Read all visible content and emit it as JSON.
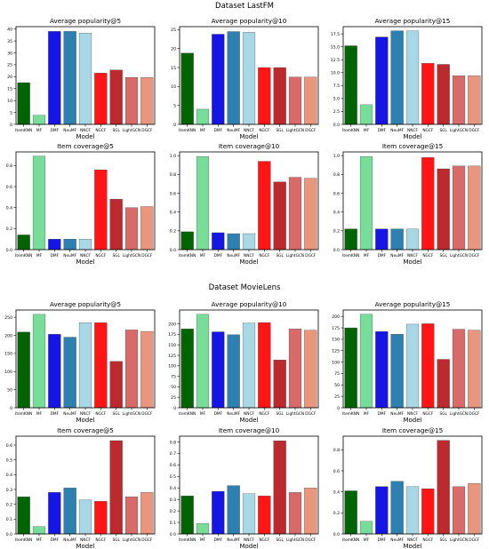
{
  "sections": [
    {
      "title": "Dataset LastFM"
    },
    {
      "title": "Dataset MovieLens"
    }
  ],
  "models": [
    "ItemKNN",
    "MF",
    "DMF",
    "NeuMF",
    "NNCF",
    "NGCF",
    "SGL",
    "LightGCN",
    "DGCF"
  ],
  "bar_colors": [
    "#006400",
    "#77dd99",
    "#1515e6",
    "#2e80b0",
    "#a8d8e6",
    "#ff1515",
    "#bd2a2e",
    "#d96a6a",
    "#e8967e"
  ],
  "xlabel": "Model",
  "chart_data": [
    {
      "type": "bar",
      "section": "Dataset LastFM",
      "title": "Average popularity@5",
      "xlabel": "Model",
      "categories": [
        "ItemKNN",
        "MF",
        "DMF",
        "NeuMF",
        "NNCF",
        "NGCF",
        "SGL",
        "LightGCN",
        "DGCF"
      ],
      "values": [
        17.5,
        3.8,
        39.0,
        39.0,
        38.3,
        21.5,
        22.8,
        19.7,
        19.7
      ],
      "ylim": [
        0,
        41
      ],
      "yticks": [
        0,
        5,
        10,
        15,
        20,
        25,
        30,
        35,
        40
      ],
      "ytick_labels": [
        "0",
        "5",
        "10",
        "15",
        "20",
        "25",
        "30",
        "35",
        "40"
      ]
    },
    {
      "type": "bar",
      "section": "Dataset LastFM",
      "title": "Average popularity@10",
      "xlabel": "Model",
      "categories": [
        "ItemKNN",
        "MF",
        "DMF",
        "NeuMF",
        "NNCF",
        "NGCF",
        "SGL",
        "LightGCN",
        "DGCF"
      ],
      "values": [
        18.8,
        4.0,
        23.8,
        24.5,
        24.3,
        15.0,
        15.0,
        12.5,
        12.5
      ],
      "ylim": [
        0,
        25.8
      ],
      "yticks": [
        0,
        5,
        10,
        15,
        20,
        25
      ],
      "ytick_labels": [
        "0",
        "5",
        "10",
        "15",
        "20",
        "25"
      ]
    },
    {
      "type": "bar",
      "section": "Dataset LastFM",
      "title": "Average popularity@15",
      "xlabel": "Model",
      "categories": [
        "ItemKNN",
        "MF",
        "DMF",
        "NeuMF",
        "NNCF",
        "NGCF",
        "SGL",
        "LightGCN",
        "DGCF"
      ],
      "values": [
        15.2,
        3.8,
        16.9,
        18.1,
        18.1,
        11.8,
        11.6,
        9.4,
        9.4
      ],
      "ylim": [
        0,
        18.9
      ],
      "yticks": [
        0,
        2.5,
        5,
        7.5,
        10,
        12.5,
        15,
        17.5
      ],
      "ytick_labels": [
        "0.0",
        "2.5",
        "5.0",
        "7.5",
        "10.0",
        "12.5",
        "15.0",
        "17.5"
      ]
    },
    {
      "type": "bar",
      "section": "Dataset LastFM",
      "title": "Item coverage@5",
      "xlabel": "Model",
      "categories": [
        "ItemKNN",
        "MF",
        "DMF",
        "NeuMF",
        "NNCF",
        "NGCF",
        "SGL",
        "LightGCN",
        "DGCF"
      ],
      "values": [
        0.14,
        0.89,
        0.1,
        0.1,
        0.1,
        0.76,
        0.48,
        0.4,
        0.41
      ],
      "ylim": [
        0,
        0.93
      ],
      "yticks": [
        0,
        0.2,
        0.4,
        0.6,
        0.8
      ],
      "ytick_labels": [
        "0.0",
        "0.2",
        "0.4",
        "0.6",
        "0.8"
      ]
    },
    {
      "type": "bar",
      "section": "Dataset LastFM",
      "title": "Item coverage@10",
      "xlabel": "Model",
      "categories": [
        "ItemKNN",
        "MF",
        "DMF",
        "NeuMF",
        "NNCF",
        "NGCF",
        "SGL",
        "LightGCN",
        "DGCF"
      ],
      "values": [
        0.19,
        0.99,
        0.18,
        0.17,
        0.17,
        0.94,
        0.72,
        0.77,
        0.76
      ],
      "ylim": [
        0,
        1.04
      ],
      "yticks": [
        0,
        0.2,
        0.4,
        0.6,
        0.8,
        1.0
      ],
      "ytick_labels": [
        "0.0",
        "0.2",
        "0.4",
        "0.6",
        "0.8",
        "1.0"
      ]
    },
    {
      "type": "bar",
      "section": "Dataset LastFM",
      "title": "Item coverage@15",
      "xlabel": "Model",
      "categories": [
        "ItemKNN",
        "MF",
        "DMF",
        "NeuMF",
        "NNCF",
        "NGCF",
        "SGL",
        "LightGCN",
        "DGCF"
      ],
      "values": [
        0.22,
        0.99,
        0.22,
        0.22,
        0.22,
        0.98,
        0.86,
        0.89,
        0.89
      ],
      "ylim": [
        0,
        1.04
      ],
      "yticks": [
        0,
        0.2,
        0.4,
        0.6,
        0.8,
        1.0
      ],
      "ytick_labels": [
        "0.0",
        "0.2",
        "0.4",
        "0.6",
        "0.8",
        "1.0"
      ]
    },
    {
      "type": "bar",
      "section": "Dataset MovieLens",
      "title": "Average popularity@5",
      "xlabel": "Model",
      "categories": [
        "ItemKNN",
        "MF",
        "DMF",
        "NeuMF",
        "NNCF",
        "NGCF",
        "SGL",
        "LightGCN",
        "DGCF"
      ],
      "values": [
        209,
        258,
        203,
        195,
        235,
        235,
        128,
        215,
        211
      ],
      "ylim": [
        0,
        270
      ],
      "yticks": [
        0,
        50,
        100,
        150,
        200,
        250
      ],
      "ytick_labels": [
        "0",
        "50",
        "100",
        "150",
        "200",
        "250"
      ]
    },
    {
      "type": "bar",
      "section": "Dataset MovieLens",
      "title": "Average popularity@10",
      "xlabel": "Model",
      "categories": [
        "ItemKNN",
        "MF",
        "DMF",
        "NeuMF",
        "NNCF",
        "NGCF",
        "SGL",
        "LightGCN",
        "DGCF"
      ],
      "values": [
        188,
        223,
        181,
        174,
        202,
        203,
        114,
        188,
        185
      ],
      "ylim": [
        0,
        233
      ],
      "yticks": [
        0,
        25,
        50,
        75,
        100,
        125,
        150,
        175,
        200
      ],
      "ytick_labels": [
        "0",
        "25",
        "50",
        "75",
        "100",
        "125",
        "150",
        "175",
        "200"
      ]
    },
    {
      "type": "bar",
      "section": "Dataset MovieLens",
      "title": "Average popularity@15",
      "xlabel": "Model",
      "categories": [
        "ItemKNN",
        "MF",
        "DMF",
        "NeuMF",
        "NNCF",
        "NGCF",
        "SGL",
        "LightGCN",
        "DGCF"
      ],
      "values": [
        175,
        205,
        167,
        161,
        183,
        184,
        106,
        172,
        170
      ],
      "ylim": [
        0,
        214
      ],
      "yticks": [
        0,
        25,
        50,
        75,
        100,
        125,
        150,
        175,
        200
      ],
      "ytick_labels": [
        "0",
        "25",
        "50",
        "75",
        "100",
        "125",
        "150",
        "175",
        "200"
      ]
    },
    {
      "type": "bar",
      "section": "Dataset MovieLens",
      "title": "Item coverage@5",
      "xlabel": "Model",
      "categories": [
        "ItemKNN",
        "MF",
        "DMF",
        "NeuMF",
        "NNCF",
        "NGCF",
        "SGL",
        "LightGCN",
        "DGCF"
      ],
      "values": [
        0.25,
        0.05,
        0.28,
        0.31,
        0.23,
        0.22,
        0.63,
        0.25,
        0.28
      ],
      "ylim": [
        0,
        0.66
      ],
      "yticks": [
        0,
        0.1,
        0.2,
        0.3,
        0.4,
        0.5,
        0.6
      ],
      "ytick_labels": [
        "0.0",
        "0.1",
        "0.2",
        "0.3",
        "0.4",
        "0.5",
        "0.6"
      ]
    },
    {
      "type": "bar",
      "section": "Dataset MovieLens",
      "title": "Item coverage@10",
      "xlabel": "Model",
      "categories": [
        "ItemKNN",
        "MF",
        "DMF",
        "NeuMF",
        "NNCF",
        "NGCF",
        "SGL",
        "LightGCN",
        "DGCF"
      ],
      "values": [
        0.33,
        0.09,
        0.37,
        0.42,
        0.35,
        0.33,
        0.81,
        0.36,
        0.4
      ],
      "ylim": [
        0,
        0.85
      ],
      "yticks": [
        0,
        0.1,
        0.2,
        0.3,
        0.4,
        0.5,
        0.6,
        0.7,
        0.8
      ],
      "ytick_labels": [
        "0.0",
        "0.1",
        "0.2",
        "0.3",
        "0.4",
        "0.5",
        "0.6",
        "0.7",
        "0.8"
      ]
    },
    {
      "type": "bar",
      "section": "Dataset MovieLens",
      "title": "Item coverage@15",
      "xlabel": "Model",
      "categories": [
        "ItemKNN",
        "MF",
        "DMF",
        "NeuMF",
        "NNCF",
        "NGCF",
        "SGL",
        "LightGCN",
        "DGCF"
      ],
      "values": [
        0.41,
        0.12,
        0.45,
        0.5,
        0.45,
        0.43,
        0.89,
        0.45,
        0.48
      ],
      "ylim": [
        0,
        0.93
      ],
      "yticks": [
        0,
        0.2,
        0.4,
        0.6,
        0.8
      ],
      "ytick_labels": [
        "0.0",
        "0.2",
        "0.4",
        "0.6",
        "0.8"
      ]
    }
  ]
}
